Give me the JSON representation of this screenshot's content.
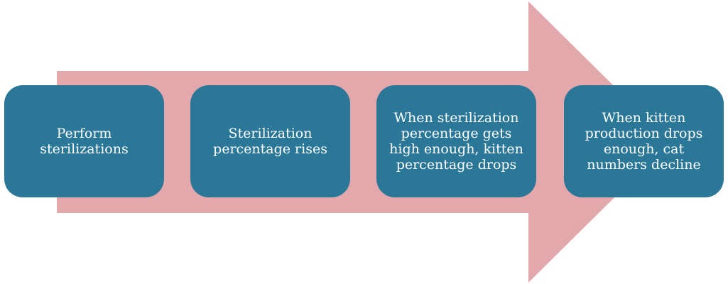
{
  "colors": {
    "arrow": "#e3a8ab",
    "box": "#2b7798",
    "text": "#ffffff"
  },
  "steps": [
    {
      "text": "Perform sterilizations"
    },
    {
      "text": "Sterilization percentage rises"
    },
    {
      "text": "When sterilization percentage gets high enough, kitten percentage drops"
    },
    {
      "text": "When kitten production drops enough, cat numbers decline"
    }
  ]
}
